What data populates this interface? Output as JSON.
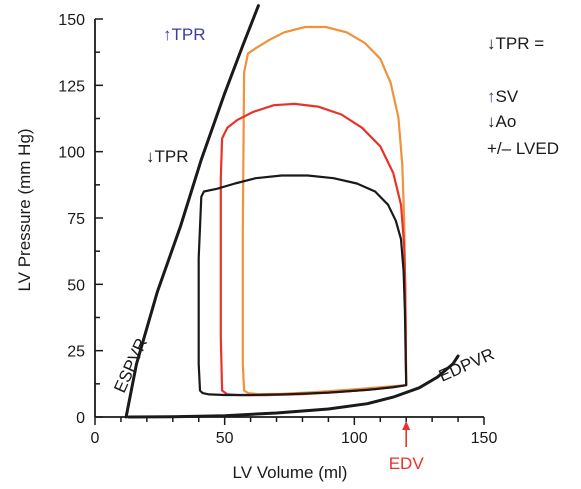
{
  "chart_data": {
    "type": "line",
    "xlabel": "LV Volume (ml)",
    "ylabel": "LV Pressure (mm Hg)",
    "xlim": [
      0,
      150
    ],
    "ylim": [
      0,
      150
    ],
    "xticks": [
      "0",
      "50",
      "100",
      "150"
    ],
    "yticks": [
      "0",
      "25",
      "50",
      "75",
      "100",
      "125",
      "150"
    ],
    "grid": false,
    "colors": {
      "baseline": "#1a1a1a",
      "low_tpr": "#e8332a",
      "high_tpr": "#f0923a",
      "tpr_up_label": "#3a3fa0",
      "edv": "#e8332a",
      "sv_arrow": "#3a3fa0"
    },
    "series": [
      {
        "key": "baseline",
        "x": [
          120,
          119.8,
          119.5,
          119,
          118,
          116,
          113,
          108,
          101,
          92,
          82,
          72,
          62,
          54,
          47,
          42,
          41,
          40,
          40,
          40.5,
          41.5,
          44,
          50,
          60,
          75,
          90,
          105,
          115,
          120
        ],
        "y": [
          12,
          22,
          40,
          55,
          67,
          74,
          80,
          85,
          88,
          90,
          91,
          91,
          90,
          88,
          86,
          85,
          83,
          60,
          20,
          10,
          9,
          8.5,
          8.3,
          8.3,
          8.6,
          9.2,
          10.2,
          11.2,
          12
        ]
      },
      {
        "key": "low_tpr",
        "x": [
          120,
          119.8,
          119.6,
          119.2,
          118,
          115,
          110,
          103,
          95,
          86,
          77,
          69,
          61,
          55,
          51,
          49,
          48.5,
          48.5,
          49,
          51,
          56,
          66,
          80,
          95,
          108,
          116,
          120
        ],
        "y": [
          12,
          30,
          50,
          65,
          80,
          92,
          102,
          109,
          114,
          117,
          118,
          117.5,
          115,
          112,
          109,
          105,
          90,
          30,
          10,
          8.5,
          8.2,
          8.2,
          8.6,
          9.5,
          10.5,
          11.5,
          12
        ]
      },
      {
        "key": "high_tpr",
        "x": [
          120,
          119.8,
          119.5,
          119.2,
          118.5,
          117,
          114,
          110,
          104,
          97,
          89,
          81,
          73,
          67,
          62,
          59,
          57.5,
          57,
          57,
          57.5,
          59,
          63,
          72,
          85,
          100,
          112,
          120
        ],
        "y": [
          12,
          35,
          55,
          75,
          95,
          113,
          126,
          135,
          141,
          145,
          147,
          147,
          145,
          142,
          139,
          137,
          130,
          70,
          20,
          10,
          9,
          8.6,
          8.7,
          9.4,
          10.4,
          11.4,
          12
        ]
      },
      {
        "key": "espvr",
        "x": [
          12,
          16,
          24,
          33,
          41,
          50,
          57,
          63
        ],
        "y": [
          0,
          20,
          47,
          72,
          97,
          122,
          140,
          155
        ]
      },
      {
        "key": "edpvr",
        "x": [
          13,
          30,
          50,
          70,
          90,
          105,
          115,
          125,
          132,
          138,
          140
        ],
        "y": [
          0,
          0.1,
          0.5,
          1.5,
          3,
          5,
          7.5,
          11,
          15,
          20,
          23
        ]
      }
    ],
    "annotations": {
      "tpr_up": "↑TPR",
      "tpr_down": "↓TPR",
      "espvr": "ESPVR",
      "edpvr": "EDPVR",
      "edv": "EDV",
      "edv_x": 120,
      "legend_line1": "↓TPR =",
      "sv_arrow": "↑",
      "sv_text": "SV",
      "ao": "↓Ao",
      "lved": "+/– LVED"
    }
  }
}
